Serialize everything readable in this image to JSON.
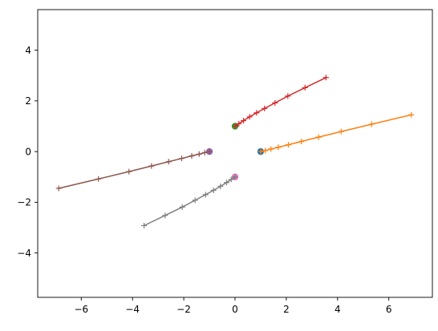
{
  "chart_data": {
    "type": "line",
    "title": "",
    "xlabel": "",
    "ylabel": "",
    "xlim": [
      -7.7,
      7.7
    ],
    "ylim": [
      -5.75,
      5.6
    ],
    "grid": false,
    "legend": "none",
    "x_ticks": [
      -6,
      -4,
      -2,
      0,
      2,
      4,
      6
    ],
    "x_tick_labels": [
      "−6",
      "−4",
      "−2",
      "0",
      "2",
      "4",
      "6"
    ],
    "y_ticks": [
      -4,
      -2,
      0,
      2,
      4
    ],
    "y_tick_labels": [
      "−4",
      "−2",
      "0",
      "2",
      "4"
    ],
    "start_points": [
      {
        "x": 1,
        "y": 0,
        "color": "#1f77b4"
      },
      {
        "x": 0,
        "y": 1,
        "color": "#2ca02c"
      },
      {
        "x": -1,
        "y": 0,
        "color": "#9467bd"
      },
      {
        "x": 0,
        "y": -1,
        "color": "#e377c2"
      }
    ],
    "series": [
      {
        "color": "#ff7f0e",
        "marker": "+",
        "x": [
          1.0,
          1.18,
          1.4,
          1.69,
          2.08,
          2.59,
          3.26,
          4.14,
          5.33,
          6.88
        ],
        "y": [
          0.0,
          0.04,
          0.1,
          0.17,
          0.27,
          0.4,
          0.57,
          0.79,
          1.08,
          1.45
        ]
      },
      {
        "color": "#d62728",
        "marker": "+",
        "x": [
          0.0,
          0.15,
          0.33,
          0.57,
          0.84,
          1.15,
          1.56,
          2.06,
          2.73,
          3.55
        ],
        "y": [
          1.0,
          1.1,
          1.22,
          1.37,
          1.53,
          1.7,
          1.92,
          2.19,
          2.52,
          2.92
        ]
      },
      {
        "color": "#8c564b",
        "marker": "+",
        "x": [
          -1.0,
          -1.18,
          -1.4,
          -1.69,
          -2.08,
          -2.59,
          -3.26,
          -4.14,
          -5.33,
          -6.88
        ],
        "y": [
          0.0,
          -0.04,
          -0.1,
          -0.17,
          -0.27,
          -0.4,
          -0.57,
          -0.79,
          -1.08,
          -1.45
        ]
      },
      {
        "color": "#7f7f7f",
        "marker": "+",
        "x": [
          0.0,
          -0.15,
          -0.33,
          -0.57,
          -0.84,
          -1.15,
          -1.56,
          -2.06,
          -2.73,
          -3.55
        ],
        "y": [
          -1.0,
          -1.1,
          -1.22,
          -1.37,
          -1.53,
          -1.7,
          -1.92,
          -2.19,
          -2.52,
          -2.92
        ]
      }
    ]
  }
}
